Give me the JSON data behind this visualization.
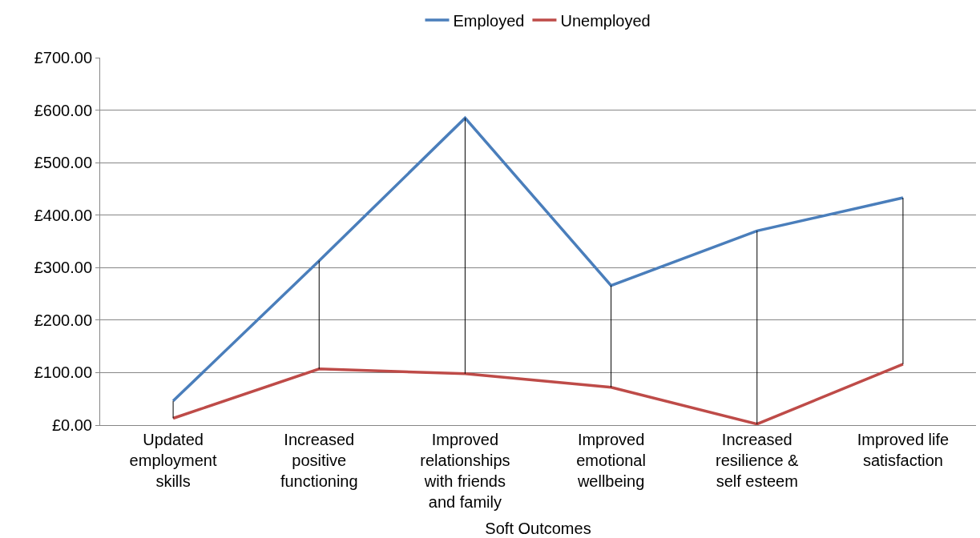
{
  "chart_data": {
    "type": "line",
    "xlabel": "Soft Outcomes",
    "categories": [
      "Updated employment skills",
      "Increased positive functioning",
      "Improved relationships with friends and family",
      "Improved emotional wellbeing",
      "Increased resilience & self esteem",
      "Improved life satisfaction"
    ],
    "series": [
      {
        "name": "Employed",
        "color": "#4a7ebb",
        "values": [
          46,
          313,
          585,
          266,
          370,
          433
        ]
      },
      {
        "name": "Unemployed",
        "color": "#be4b48",
        "values": [
          13,
          107,
          98,
          72,
          2,
          116
        ],
        "errors": [
          [
            13,
            46
          ],
          [
            107,
            313
          ],
          [
            98,
            585
          ],
          [
            72,
            266
          ],
          [
            2,
            370
          ],
          [
            116,
            433
          ]
        ]
      }
    ],
    "ylim": [
      0,
      700
    ],
    "yticks": [
      {
        "value": 0,
        "label": "£0.00"
      },
      {
        "value": 100,
        "label": "£100.00"
      },
      {
        "value": 200,
        "label": "£200.00"
      },
      {
        "value": 300,
        "label": "£300.00"
      },
      {
        "value": 400,
        "label": "£400.00"
      },
      {
        "value": 500,
        "label": "£500.00"
      },
      {
        "value": 600,
        "label": "£600.00"
      },
      {
        "value": 700,
        "label": "£700.00"
      }
    ],
    "grid": "y",
    "legend": "top",
    "marker": "none",
    "line_style": "solid"
  }
}
